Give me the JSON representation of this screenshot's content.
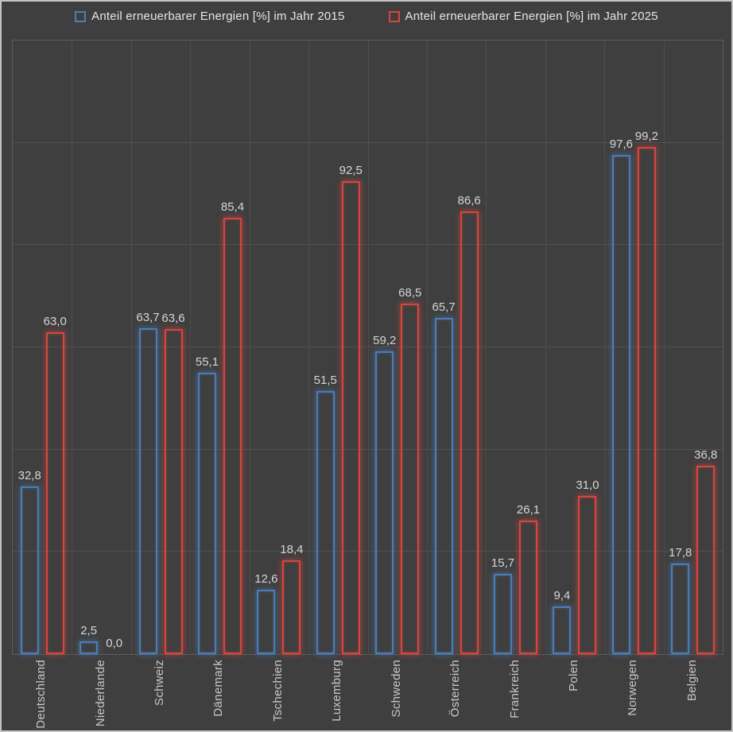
{
  "legend": {
    "items": [
      {
        "label": "Anteil erneuerbarer Energien [%] im Jahr 2015",
        "color": "#4b7db8"
      },
      {
        "label": "Anteil erneuerbarer Energien [%] im Jahr 2025",
        "color": "#d8453f"
      }
    ]
  },
  "chart_data": {
    "type": "bar",
    "title": "",
    "categories": [
      "Deutschland",
      "Niederlande",
      "Schweiz",
      "Dänemark",
      "Tschechien",
      "Luxemburg",
      "Schweden",
      "Österreich",
      "Frankreich",
      "Polen",
      "Norwegen",
      "Belgien"
    ],
    "series": [
      {
        "name": "Anteil erneuerbarer Energien [%] im Jahr 2015",
        "year": "2015",
        "color": "#4b7db8",
        "values": [
          32.8,
          2.5,
          63.7,
          55.1,
          12.6,
          51.5,
          59.2,
          65.7,
          15.7,
          9.4,
          97.6,
          17.8
        ]
      },
      {
        "name": "Anteil erneuerbarer Energien [%] im Jahr 2025",
        "year": "2025",
        "color": "#d8453f",
        "values": [
          63.0,
          0.0,
          63.6,
          85.4,
          18.4,
          92.5,
          68.5,
          86.6,
          26.1,
          31.0,
          99.2,
          36.8
        ]
      }
    ],
    "xlabel": "",
    "ylabel": "",
    "ylim": [
      0,
      120
    ],
    "grid_step": 20,
    "grid": true,
    "legend_position": "top",
    "value_label_decimal_separator": ",",
    "value_label_decimals": 1,
    "bar_style": "outline-glow"
  },
  "colors": {
    "background": "#3f3f3f",
    "frame_border": "#c4c4c4",
    "plot_border": "#5d5d5d",
    "gridline_horizontal": "#515151",
    "gridline_vertical": "#4e4e4e",
    "value_label": "#d6d6d6",
    "category_label": "#c9c6c6",
    "legend_text": "#e6e6e6"
  }
}
